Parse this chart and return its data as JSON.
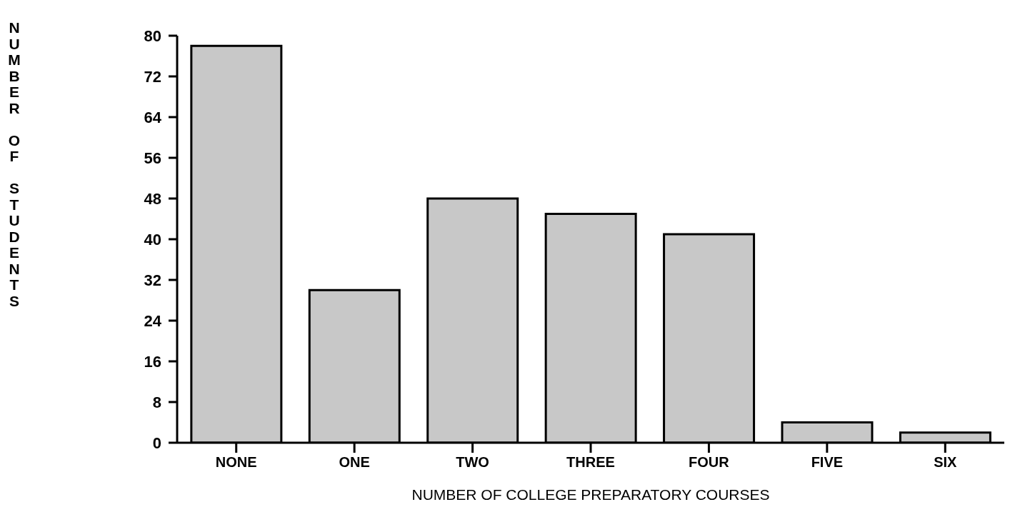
{
  "chart_data": {
    "type": "bar",
    "xlabel": "NUMBER OF COLLEGE PREPARATORY COURSES",
    "ylabel": "NUMBER OF STUDENTS",
    "categories": [
      "NONE",
      "ONE",
      "TWO",
      "THREE",
      "FOUR",
      "FIVE",
      "SIX"
    ],
    "values": [
      78,
      30,
      48,
      45,
      41,
      4,
      2
    ],
    "color": "#c8c8c8",
    "ylim": [
      0,
      80
    ],
    "yticks": [
      0,
      8,
      16,
      24,
      32,
      40,
      48,
      56,
      64,
      72,
      80
    ],
    "grid": false,
    "legend": false
  }
}
